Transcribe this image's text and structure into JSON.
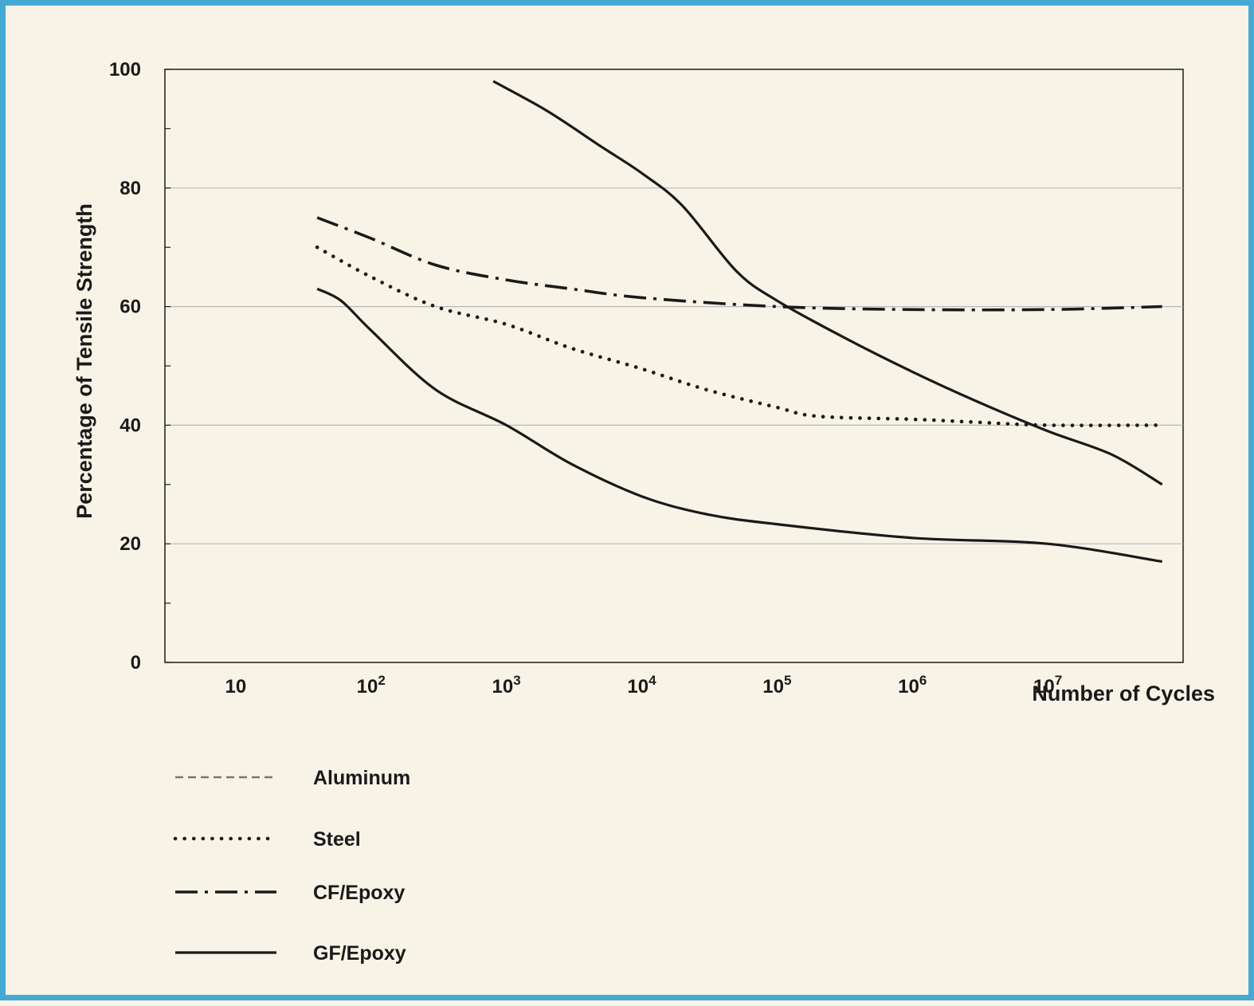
{
  "chart_data": {
    "type": "line",
    "xlabel": "Number of Cycles",
    "ylabel": "Percentage of Tensile Strength",
    "x_scale": "log",
    "xlim": [
      3,
      100000000
    ],
    "ylim": [
      0,
      100
    ],
    "grid": "horizontal",
    "x_ticks": [
      {
        "value": 10,
        "base": "10",
        "exp": ""
      },
      {
        "value": 100,
        "base": "10",
        "exp": "2"
      },
      {
        "value": 1000,
        "base": "10",
        "exp": "3"
      },
      {
        "value": 10000,
        "base": "10",
        "exp": "4"
      },
      {
        "value": 100000,
        "base": "10",
        "exp": "5"
      },
      {
        "value": 1000000,
        "base": "10",
        "exp": "6"
      },
      {
        "value": 10000000,
        "base": "10",
        "exp": "7"
      }
    ],
    "y_ticks": [
      "0",
      "20",
      "40",
      "60",
      "80",
      "100"
    ],
    "legend_position": "bottom-left",
    "series": [
      {
        "name": "Aluminum",
        "style": "dashed",
        "color": "#777777",
        "points": []
      },
      {
        "name": "Steel",
        "style": "dotted",
        "color": "#1a1a1a",
        "points": [
          [
            40,
            70
          ],
          [
            100,
            65
          ],
          [
            300,
            60
          ],
          [
            1000,
            57
          ],
          [
            3000,
            53
          ],
          [
            10000,
            49.5
          ],
          [
            30000,
            46
          ],
          [
            100000,
            43
          ],
          [
            200000,
            41.5
          ],
          [
            1000000,
            41
          ],
          [
            3000000,
            40.5
          ],
          [
            10000000,
            40
          ],
          [
            70000000,
            40
          ]
        ]
      },
      {
        "name": "CF/Epoxy",
        "style": "dashdot",
        "color": "#1a1a1a",
        "points": [
          [
            40,
            75
          ],
          [
            100,
            71.5
          ],
          [
            300,
            67
          ],
          [
            1000,
            64.5
          ],
          [
            3000,
            63
          ],
          [
            10000,
            61.5
          ],
          [
            100000,
            60
          ],
          [
            1000000,
            59.5
          ],
          [
            10000000,
            59.5
          ],
          [
            70000000,
            60
          ]
        ]
      },
      {
        "name": "GF/Epoxy",
        "style": "solid",
        "color": "#1a1a1a",
        "points": [
          [
            40,
            63
          ],
          [
            60,
            61
          ],
          [
            100,
            56
          ],
          [
            300,
            46
          ],
          [
            1000,
            40
          ],
          [
            3000,
            33.5
          ],
          [
            10000,
            28
          ],
          [
            30000,
            25
          ],
          [
            100000,
            23.3
          ],
          [
            1000000,
            21
          ],
          [
            10000000,
            20
          ],
          [
            70000000,
            17
          ]
        ]
      },
      {
        "name": "",
        "style": "solid",
        "color": "#1a1a1a",
        "points": [
          [
            800,
            98
          ],
          [
            2000,
            93
          ],
          [
            5000,
            87
          ],
          [
            10000,
            82.5
          ],
          [
            20000,
            77
          ],
          [
            50000,
            66
          ],
          [
            100000,
            61
          ],
          [
            300000,
            55
          ],
          [
            1000000,
            49
          ],
          [
            3000000,
            44
          ],
          [
            10000000,
            39
          ],
          [
            30000000,
            35
          ],
          [
            70000000,
            30
          ]
        ]
      }
    ]
  }
}
